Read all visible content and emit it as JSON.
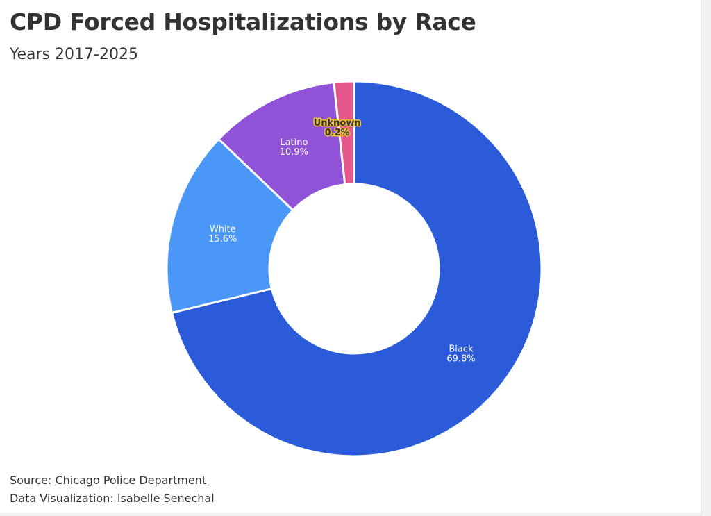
{
  "header": {
    "title": "CPD Forced Hospitalizations by Race",
    "subtitle": "Years 2017-2025"
  },
  "chart_data": {
    "type": "pie",
    "subtype": "donut",
    "title": "CPD Forced Hospitalizations by Race",
    "subtitle": "Years 2017-2025",
    "slices": [
      {
        "label": "Black",
        "value": 69.8,
        "display": "69.8%",
        "color": "#2b5bd8"
      },
      {
        "label": "White",
        "value": 15.6,
        "display": "15.6%",
        "color": "#4a97f7"
      },
      {
        "label": "Latino",
        "value": 10.9,
        "display": "10.9%",
        "color": "#9052d6"
      },
      {
        "label": "Unknown",
        "value": 0.2,
        "display": "0.2%",
        "color": "#e3578c"
      }
    ],
    "legend": "none"
  },
  "footer": {
    "source_prefix": "Source: ",
    "source_link": "Chicago Police Department",
    "credit": "Data Visualization: Isabelle Senechal"
  }
}
